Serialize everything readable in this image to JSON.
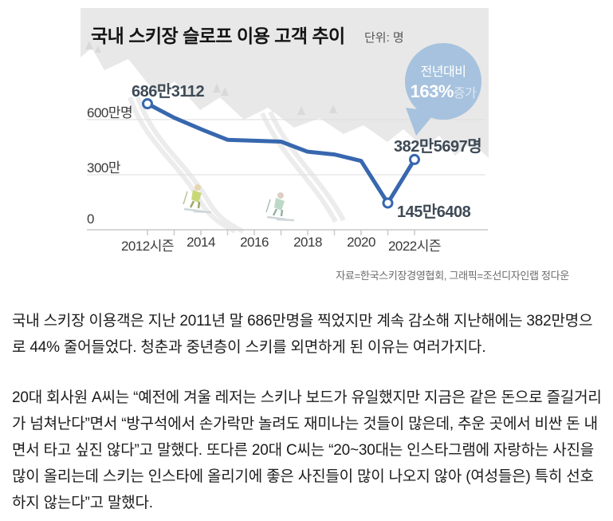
{
  "chart": {
    "title": "국내 스키장 슬로프 이용 고객 추이",
    "unit_label": "단위: 명",
    "badge": {
      "line1": "전년대비",
      "percent": "163%",
      "suffix": "증가"
    },
    "point_labels": {
      "start": "686만3112",
      "end": "382만5697명",
      "low": "145만6408"
    },
    "y_labels": [
      "600만명",
      "300만",
      "0"
    ],
    "x_labels": [
      "2012시즌",
      "2014",
      "2016",
      "2018",
      "2020",
      "2022시즌"
    ],
    "source": "자료=한국스키장경영협회, 그래픽=조선디자인랩 정다운"
  },
  "chart_data": {
    "type": "line",
    "title": "국내 스키장 슬로프 이용 고객 추이",
    "unit": "명",
    "seasons": [
      "2012",
      "2013",
      "2014",
      "2015",
      "2016",
      "2017",
      "2018",
      "2019",
      "2020",
      "2021",
      "2022"
    ],
    "values_persons": [
      6863112,
      6100000,
      5480000,
      4900000,
      4850000,
      4800000,
      4250000,
      4100000,
      3750000,
      1456408,
      3825697
    ],
    "estimated_flags": [
      false,
      true,
      true,
      true,
      true,
      true,
      true,
      true,
      true,
      false,
      false
    ],
    "marked_points": [
      0,
      9,
      10
    ],
    "yticks": [
      0,
      3000000,
      6000000
    ],
    "ytick_labels": [
      "0",
      "300만",
      "600만명"
    ],
    "xtick_labels": [
      "2012시즌",
      "2014",
      "2016",
      "2018",
      "2020",
      "2022시즌"
    ],
    "ylim": [
      0,
      7600000
    ],
    "grid": true,
    "legend": "none",
    "annotation": "전년대비 163%증가",
    "source": "자료=한국스키장경영협회, 그래픽=조선디자인랩 정다운"
  },
  "colors": {
    "line": "#3767ae",
    "marker_fill": "#ffffff",
    "balloon": "#a6c2de",
    "sky": "#e8e8e8",
    "trees": "#d9d9d9",
    "grid": "#dedede",
    "axis": "#c9c9c9"
  },
  "article": {
    "p1": "국내 스키장 이용객은 지난 2011년 말 686만명을 찍었지만 계속 감소해 지난해에는 382만명으로 44% 줄어들었다. 청춘과 중년층이 스키를 외면하게 된 이유는 여러가지다.",
    "p2": "20대 회사원 A씨는 “예전에 겨울 레저는 스키나 보드가 유일했지만 지금은 같은 돈으로 즐길거리가 넘쳐난다”면서 “방구석에서 손가락만 놀려도 재미나는 것들이 많은데, 추운 곳에서 비싼 돈 내면서 타고 싶진 않다”고 말했다. 또다른 20대 C씨는 “20~30대는 인스타그램에 자랑하는 사진을 많이 올리는데 스키는 인스타에 올리기에 좋은 사진들이 많이 나오지 않아 (여성들은) 특히 선호하지 않는다”고 말했다."
  }
}
